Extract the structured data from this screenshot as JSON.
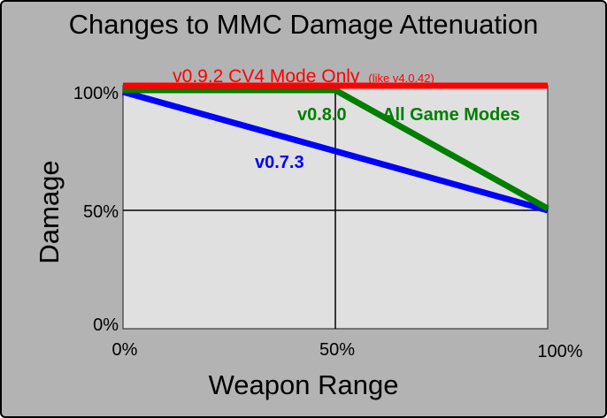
{
  "chart_data": {
    "type": "line",
    "title": "Changes to MMC Damage Attenuation",
    "xlabel": "Weapon Range",
    "ylabel": "Damage",
    "xlim": [
      0,
      100
    ],
    "ylim": [
      0,
      100
    ],
    "x_ticks": [
      {
        "value": 0,
        "label": "0%"
      },
      {
        "value": 50,
        "label": "50%"
      },
      {
        "value": 100,
        "label": "100%"
      }
    ],
    "y_ticks": [
      {
        "value": 0,
        "label": "0%"
      },
      {
        "value": 50,
        "label": "50%"
      },
      {
        "value": 100,
        "label": "100%"
      }
    ],
    "grid": "lines at 50% only",
    "series": [
      {
        "name": "v0.7.3",
        "color": "#0000ff",
        "points": [
          [
            0,
            100
          ],
          [
            100,
            50
          ]
        ]
      },
      {
        "name": "v0.8.0",
        "color": "#007f00",
        "points": [
          [
            0,
            100
          ],
          [
            50,
            100
          ],
          [
            100,
            50
          ]
        ]
      },
      {
        "name": "v0.9.2 CV4 Mode Only",
        "color": "#ff0000",
        "points": [
          [
            0,
            100
          ],
          [
            100,
            100
          ]
        ]
      }
    ],
    "annotations": {
      "red_main": "v0.9.2 CV4 Mode Only",
      "red_note": "(like v4.0.42)",
      "green_version": "v0.8.0",
      "green_note": "All Game Modes",
      "blue_version": "v0.7.3"
    },
    "colors": {
      "background": "#b3b3b3",
      "plot_background": "#e0e0e0"
    }
  }
}
